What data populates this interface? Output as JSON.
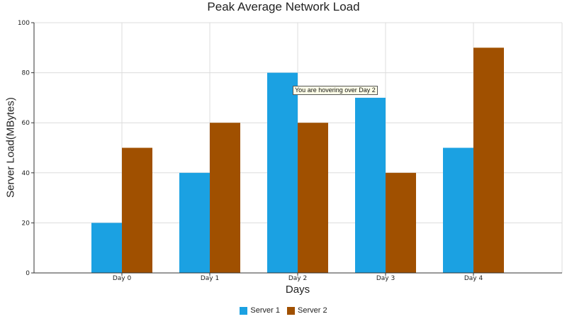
{
  "chart_data": {
    "type": "bar",
    "title": "Peak Average Network Load",
    "xlabel": "Days",
    "ylabel": "Server Load(MBytes)",
    "categories": [
      "Day 0",
      "Day 1",
      "Day 2",
      "Day 3",
      "Day 4"
    ],
    "series": [
      {
        "name": "Server 1",
        "color": "#1ba1e2",
        "values": [
          20,
          40,
          80,
          70,
          50
        ]
      },
      {
        "name": "Server 2",
        "color": "#a05000",
        "values": [
          50,
          60,
          60,
          40,
          90
        ]
      }
    ],
    "ylim": [
      0,
      100
    ],
    "yticks": [
      0,
      20,
      40,
      60,
      80,
      100
    ],
    "grid": true,
    "legend": "bottom",
    "tooltip": "You are hovering over Day 2"
  }
}
